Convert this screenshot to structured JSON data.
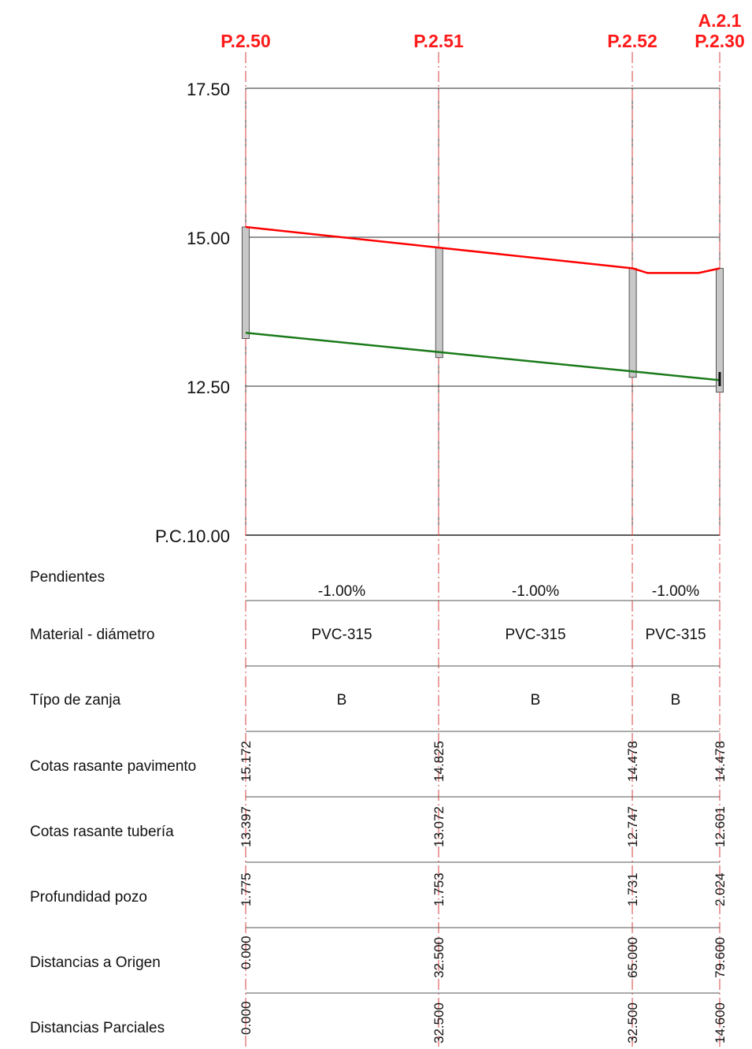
{
  "points": [
    {
      "name": "P.2.50",
      "extra": "",
      "dist": 0.0
    },
    {
      "name": "P.2.51",
      "extra": "",
      "dist": 32.5
    },
    {
      "name": "P.2.52",
      "extra": "",
      "dist": 65.0
    },
    {
      "name": "P.2.30",
      "extra": "A.2.1",
      "dist": 79.6
    }
  ],
  "elevation_axis": {
    "min": 10.0,
    "max": 17.5,
    "ticks": [
      {
        "value": 17.5,
        "label": "17.50"
      },
      {
        "value": 15.0,
        "label": "15.00"
      },
      {
        "value": 12.5,
        "label": "12.50"
      },
      {
        "value": 10.0,
        "label": "P.C.10.00"
      }
    ]
  },
  "chart_data": {
    "type": "line",
    "title": "",
    "xlabel": "",
    "ylabel": "",
    "ylim": [
      10.0,
      17.5
    ],
    "xlim": [
      0,
      79.6
    ],
    "series": [
      {
        "role": "pavement",
        "color": "#ff0000",
        "x": [
          0.0,
          32.5,
          65.0,
          67.5,
          76.0,
          79.6
        ],
        "y": [
          15.172,
          14.825,
          14.478,
          14.4,
          14.4,
          14.478
        ]
      },
      {
        "role": "pipe",
        "color": "#1a7a1a",
        "x": [
          0.0,
          32.5,
          65.0,
          79.6
        ],
        "y": [
          13.397,
          13.072,
          12.747,
          12.601
        ]
      }
    ],
    "manholes": [
      {
        "x": 0.0,
        "top": 15.172,
        "bottom": 13.3
      },
      {
        "x": 32.5,
        "top": 14.825,
        "bottom": 12.98
      },
      {
        "x": 65.0,
        "top": 14.478,
        "bottom": 12.65
      },
      {
        "x": 79.6,
        "top": 14.478,
        "bottom": 12.4
      }
    ]
  },
  "rows": {
    "pendientes": {
      "label": "Pendientes",
      "values": [
        "-1.00%",
        "-1.00%",
        "-1.00%"
      ]
    },
    "material": {
      "label": "Material - diámetro",
      "values": [
        "PVC-315",
        "PVC-315",
        "PVC-315"
      ]
    },
    "zanja": {
      "label": "Típo de zanja",
      "values": [
        "B",
        "B",
        "B"
      ]
    },
    "cotas_pav": {
      "label": "Cotas rasante pavimento",
      "values": [
        "15.172",
        "14.825",
        "14.478",
        "14.478"
      ]
    },
    "cotas_tub": {
      "label": "Cotas rasante tubería",
      "values": [
        "13.397",
        "13.072",
        "12.747",
        "12.601"
      ]
    },
    "profundidad": {
      "label": "Profundidad pozo",
      "values": [
        "1.775",
        "1.753",
        "1.731",
        "2.024"
      ]
    },
    "dist_origen": {
      "label": "Distancias a Origen",
      "values": [
        "0.000",
        "32.500",
        "65.000",
        "79.600"
      ]
    },
    "dist_parciales": {
      "label": "Distancias Parciales",
      "values": [
        "0.000",
        "32.500",
        "32.500",
        "14.600"
      ]
    }
  },
  "colors": {
    "point_label": "#ff1a1a",
    "axis_line": "#d94040",
    "grid": "#555555",
    "pavement": "#ff0000",
    "pipe": "#1a7a1a",
    "manhole_fill": "#c8c8c8"
  }
}
